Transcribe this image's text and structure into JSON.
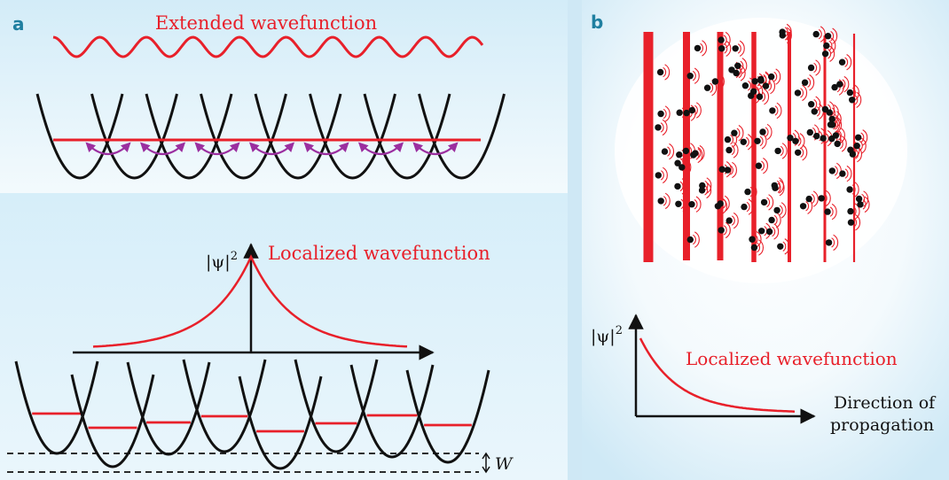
{
  "panel_a": {
    "label": "a",
    "top_title": "Extended wavefunction",
    "bottom_title": "Localized wavefunction",
    "psi_label": "|ψ|",
    "psi_exp": "2",
    "w_label": "W"
  },
  "panel_b": {
    "label": "b",
    "psi_label": "|ψ|",
    "psi_exp": "2",
    "curve_label": "Localized wavefunction",
    "xaxis_line1": "Direction of",
    "xaxis_line2": "propagation"
  },
  "colors": {
    "accent_red": "#e8202a",
    "arrow_purple": "#9b2fa0",
    "panel_letter": "#1f7fa0",
    "bg_light_blue": "#dff1fb",
    "scatterer": "#111111"
  }
}
